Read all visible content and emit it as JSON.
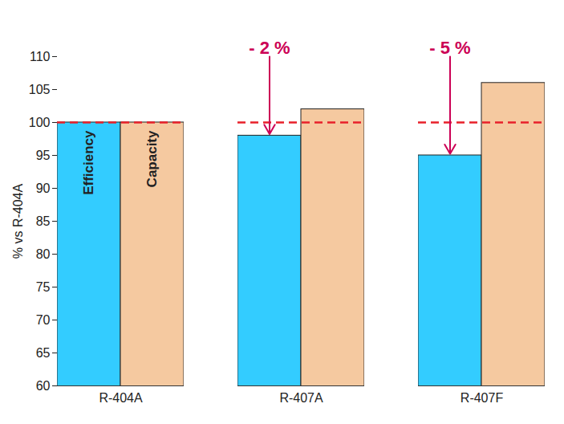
{
  "chart_data": {
    "type": "bar",
    "y_label": "% vs R-404A",
    "categories": [
      "R-404A",
      "R-407A",
      "R-407F"
    ],
    "series": [
      {
        "name": "Efficiency",
        "color": "#33ccff",
        "values": [
          100,
          98,
          95
        ]
      },
      {
        "name": "Capacity",
        "color": "#f5c9a0",
        "values": [
          100,
          102,
          106
        ]
      }
    ],
    "ylim": [
      60,
      110
    ],
    "yticks": [
      60,
      65,
      70,
      75,
      80,
      85,
      90,
      95,
      100,
      105,
      110
    ],
    "reference_line": 100,
    "annotations": [
      {
        "text": "- 2 %",
        "category": "R-407A",
        "series": "Efficiency"
      },
      {
        "text": "- 5 %",
        "category": "R-407F",
        "series": "Efficiency"
      }
    ],
    "grid": false
  }
}
